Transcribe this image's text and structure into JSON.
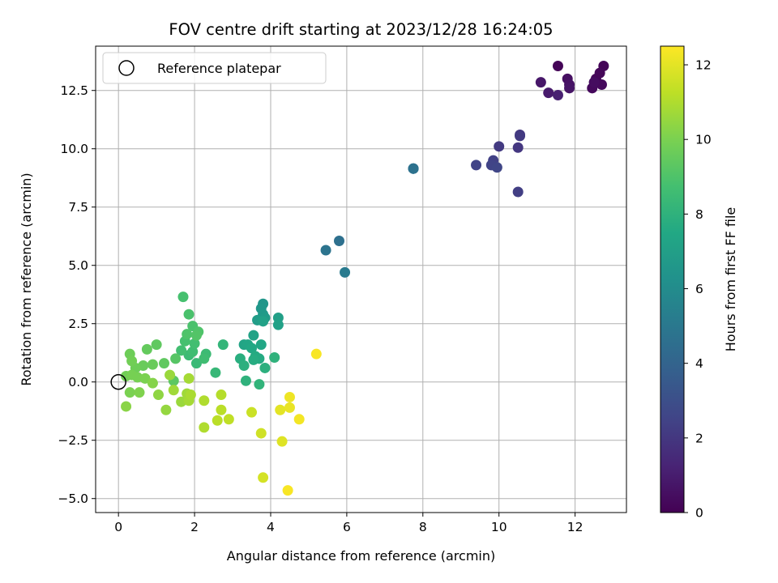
{
  "chart_data": {
    "type": "scatter",
    "title": "FOV centre drift starting at 2023/12/28 16:24:05",
    "xlabel": "Angular distance from reference (arcmin)",
    "ylabel": "Rotation from reference (arcmin)",
    "xlim": [
      -0.6,
      13.35
    ],
    "ylim": [
      -5.6,
      14.4
    ],
    "xticks": [
      0,
      2,
      4,
      6,
      8,
      10,
      12
    ],
    "xtick_labels": [
      "0",
      "2",
      "4",
      "6",
      "8",
      "10",
      "12"
    ],
    "yticks": [
      -5.0,
      -2.5,
      0.0,
      2.5,
      5.0,
      7.5,
      10.0,
      12.5
    ],
    "ytick_labels": [
      "−5.0",
      "−2.5",
      "0.0",
      "2.5",
      "5.0",
      "7.5",
      "10.0",
      "12.5"
    ],
    "grid": true,
    "legend": {
      "location": "upper left",
      "entries": [
        "Reference platepar"
      ]
    },
    "reference_point": {
      "x": 0,
      "y": 0,
      "label": "Reference platepar"
    },
    "colorbar": {
      "label": "Hours from first FF file",
      "min": 0,
      "max": 12.5,
      "ticks": [
        0,
        2,
        4,
        6,
        8,
        10,
        12
      ],
      "tick_labels": [
        "0",
        "2",
        "4",
        "6",
        "8",
        "10",
        "12"
      ],
      "colormap": "viridis"
    },
    "points": [
      {
        "x": 11.55,
        "y": 13.55,
        "h": 0.1
      },
      {
        "x": 12.75,
        "y": 13.55,
        "h": 0.1
      },
      {
        "x": 12.55,
        "y": 13.0,
        "h": 0.2
      },
      {
        "x": 12.65,
        "y": 13.25,
        "h": 0.2
      },
      {
        "x": 12.7,
        "y": 12.75,
        "h": 0.3
      },
      {
        "x": 12.45,
        "y": 12.6,
        "h": 0.3
      },
      {
        "x": 12.5,
        "y": 12.85,
        "h": 0.4
      },
      {
        "x": 11.8,
        "y": 13.0,
        "h": 0.5
      },
      {
        "x": 11.85,
        "y": 12.75,
        "h": 0.6
      },
      {
        "x": 11.85,
        "y": 12.6,
        "h": 0.7
      },
      {
        "x": 11.1,
        "y": 12.85,
        "h": 0.8
      },
      {
        "x": 11.3,
        "y": 12.4,
        "h": 0.9
      },
      {
        "x": 11.55,
        "y": 12.3,
        "h": 1.1
      },
      {
        "x": 10.55,
        "y": 10.6,
        "h": 2.0
      },
      {
        "x": 10.55,
        "y": 10.55,
        "h": 2.1
      },
      {
        "x": 10.5,
        "y": 10.05,
        "h": 2.0
      },
      {
        "x": 10.0,
        "y": 10.1,
        "h": 2.1
      },
      {
        "x": 10.5,
        "y": 8.15,
        "h": 2.3
      },
      {
        "x": 9.85,
        "y": 9.5,
        "h": 2.4
      },
      {
        "x": 9.8,
        "y": 9.3,
        "h": 2.5
      },
      {
        "x": 9.95,
        "y": 9.2,
        "h": 2.6
      },
      {
        "x": 9.4,
        "y": 9.3,
        "h": 2.5
      },
      {
        "x": 7.75,
        "y": 9.15,
        "h": 4.5
      },
      {
        "x": 7.75,
        "y": 9.15,
        "h": 4.6
      },
      {
        "x": 7.75,
        "y": 9.15,
        "h": 4.7
      },
      {
        "x": 5.8,
        "y": 6.05,
        "h": 4.6
      },
      {
        "x": 5.45,
        "y": 5.65,
        "h": 4.8
      },
      {
        "x": 5.95,
        "y": 4.7,
        "h": 5.1
      },
      {
        "x": 3.8,
        "y": 3.35,
        "h": 6.5
      },
      {
        "x": 3.75,
        "y": 3.15,
        "h": 6.6
      },
      {
        "x": 3.8,
        "y": 2.9,
        "h": 6.7
      },
      {
        "x": 3.85,
        "y": 2.75,
        "h": 6.8
      },
      {
        "x": 3.65,
        "y": 2.65,
        "h": 6.9
      },
      {
        "x": 4.2,
        "y": 2.75,
        "h": 7.0
      },
      {
        "x": 4.2,
        "y": 2.45,
        "h": 7.1
      },
      {
        "x": 3.8,
        "y": 2.6,
        "h": 7.1
      },
      {
        "x": 3.55,
        "y": 2.0,
        "h": 7.2
      },
      {
        "x": 3.3,
        "y": 1.6,
        "h": 7.3
      },
      {
        "x": 3.4,
        "y": 1.6,
        "h": 7.4
      },
      {
        "x": 3.75,
        "y": 1.6,
        "h": 7.4
      },
      {
        "x": 3.5,
        "y": 1.45,
        "h": 7.5
      },
      {
        "x": 3.6,
        "y": 1.1,
        "h": 7.6
      },
      {
        "x": 3.7,
        "y": 1.0,
        "h": 7.6
      },
      {
        "x": 3.55,
        "y": 0.95,
        "h": 7.7
      },
      {
        "x": 3.2,
        "y": 1.0,
        "h": 7.8
      },
      {
        "x": 3.3,
        "y": 0.7,
        "h": 7.9
      },
      {
        "x": 3.85,
        "y": 0.6,
        "h": 7.9
      },
      {
        "x": 4.1,
        "y": 1.05,
        "h": 8.0
      },
      {
        "x": 3.35,
        "y": 0.05,
        "h": 8.0
      },
      {
        "x": 3.7,
        "y": -0.1,
        "h": 8.1
      },
      {
        "x": 2.75,
        "y": 1.6,
        "h": 8.2
      },
      {
        "x": 2.55,
        "y": 0.4,
        "h": 8.3
      },
      {
        "x": 2.05,
        "y": 0.8,
        "h": 8.4
      },
      {
        "x": 1.85,
        "y": 1.15,
        "h": 8.5
      },
      {
        "x": 2.3,
        "y": 1.2,
        "h": 8.5
      },
      {
        "x": 2.25,
        "y": 1.0,
        "h": 8.6
      },
      {
        "x": 1.95,
        "y": 1.3,
        "h": 8.6
      },
      {
        "x": 2.0,
        "y": 1.65,
        "h": 8.7
      },
      {
        "x": 1.65,
        "y": 1.35,
        "h": 8.7
      },
      {
        "x": 1.75,
        "y": 1.75,
        "h": 8.8
      },
      {
        "x": 1.7,
        "y": 3.65,
        "h": 8.8
      },
      {
        "x": 1.85,
        "y": 2.9,
        "h": 8.9
      },
      {
        "x": 1.95,
        "y": 2.4,
        "h": 8.9
      },
      {
        "x": 2.1,
        "y": 2.15,
        "h": 9.0
      },
      {
        "x": 1.8,
        "y": 2.05,
        "h": 9.0
      },
      {
        "x": 2.05,
        "y": 2.0,
        "h": 9.1
      },
      {
        "x": 1.5,
        "y": 1.0,
        "h": 9.2
      },
      {
        "x": 1.45,
        "y": 0.05,
        "h": 9.3
      },
      {
        "x": 1.2,
        "y": 0.8,
        "h": 9.4
      },
      {
        "x": 1.0,
        "y": 1.6,
        "h": 9.4
      },
      {
        "x": 0.75,
        "y": 1.4,
        "h": 9.5
      },
      {
        "x": 0.9,
        "y": 0.75,
        "h": 9.6
      },
      {
        "x": 0.65,
        "y": 0.7,
        "h": 9.6
      },
      {
        "x": 0.45,
        "y": 0.6,
        "h": 9.7
      },
      {
        "x": 0.3,
        "y": 1.2,
        "h": 9.7
      },
      {
        "x": 0.35,
        "y": 0.9,
        "h": 9.8
      },
      {
        "x": 0.2,
        "y": 0.25,
        "h": 9.8
      },
      {
        "x": 0.35,
        "y": 0.3,
        "h": 9.9
      },
      {
        "x": 0.5,
        "y": 0.2,
        "h": 9.9
      },
      {
        "x": 0.7,
        "y": 0.15,
        "h": 10.0
      },
      {
        "x": 0.3,
        "y": -0.45,
        "h": 10.0
      },
      {
        "x": 0.55,
        "y": -0.45,
        "h": 10.1
      },
      {
        "x": 0.9,
        "y": -0.05,
        "h": 10.2
      },
      {
        "x": 0.2,
        "y": -1.05,
        "h": 10.3
      },
      {
        "x": 1.05,
        "y": -0.55,
        "h": 10.4
      },
      {
        "x": 1.25,
        "y": -1.2,
        "h": 10.5
      },
      {
        "x": 1.35,
        "y": 0.3,
        "h": 10.6
      },
      {
        "x": 1.65,
        "y": -0.85,
        "h": 10.6
      },
      {
        "x": 1.45,
        "y": -0.35,
        "h": 10.7
      },
      {
        "x": 1.8,
        "y": -0.5,
        "h": 10.7
      },
      {
        "x": 1.85,
        "y": 0.15,
        "h": 10.8
      },
      {
        "x": 1.85,
        "y": -0.8,
        "h": 10.8
      },
      {
        "x": 1.9,
        "y": -0.55,
        "h": 10.9
      },
      {
        "x": 2.25,
        "y": -0.8,
        "h": 11.0
      },
      {
        "x": 2.25,
        "y": -1.95,
        "h": 11.0
      },
      {
        "x": 2.7,
        "y": -0.55,
        "h": 11.1
      },
      {
        "x": 2.7,
        "y": -1.2,
        "h": 11.2
      },
      {
        "x": 2.6,
        "y": -1.65,
        "h": 11.2
      },
      {
        "x": 2.9,
        "y": -1.6,
        "h": 11.3
      },
      {
        "x": 3.5,
        "y": -1.3,
        "h": 11.5
      },
      {
        "x": 3.75,
        "y": -2.2,
        "h": 11.6
      },
      {
        "x": 3.8,
        "y": -4.1,
        "h": 11.7
      },
      {
        "x": 4.3,
        "y": -2.55,
        "h": 11.9
      },
      {
        "x": 4.25,
        "y": -1.2,
        "h": 12.0
      },
      {
        "x": 4.5,
        "y": -1.1,
        "h": 12.1
      },
      {
        "x": 4.5,
        "y": -0.65,
        "h": 12.2
      },
      {
        "x": 4.75,
        "y": -1.6,
        "h": 12.3
      },
      {
        "x": 4.45,
        "y": -4.65,
        "h": 12.4
      },
      {
        "x": 5.2,
        "y": 1.2,
        "h": 12.4
      }
    ]
  }
}
